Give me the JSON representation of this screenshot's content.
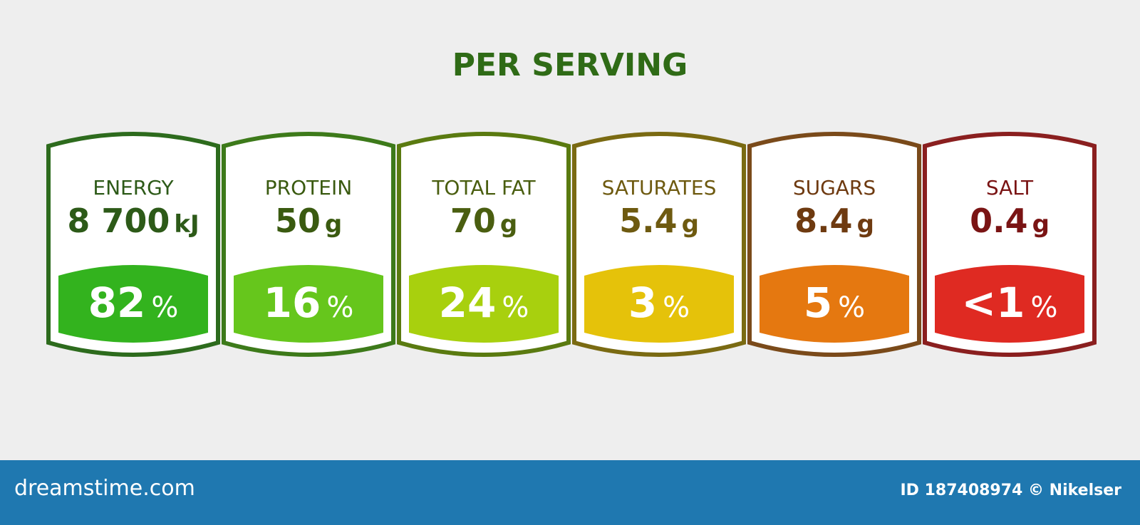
{
  "title": "PER SERVING",
  "cards": [
    {
      "label": "ENERGY",
      "value": "8 700",
      "unit": "kJ",
      "percent": "82",
      "pct_sign": "%",
      "border_color": "#2d6b1d",
      "fill_color": "#33b31e",
      "text_color": "#2d5a18"
    },
    {
      "label": "PROTEIN",
      "value": "50",
      "unit": "g",
      "percent": "16",
      "pct_sign": "%",
      "border_color": "#3d7a1a",
      "fill_color": "#66c61c",
      "text_color": "#3a5a10"
    },
    {
      "label": "TOTAL FAT",
      "value": "70",
      "unit": "g",
      "percent": "24",
      "pct_sign": "%",
      "border_color": "#5a7a10",
      "fill_color": "#a8d00e",
      "text_color": "#4a5e10"
    },
    {
      "label": "SATURATES",
      "value": "5.4",
      "unit": "g",
      "percent": "3",
      "pct_sign": "%",
      "border_color": "#7a6a12",
      "fill_color": "#e5c20a",
      "text_color": "#6e5a10"
    },
    {
      "label": "SUGARS",
      "value": "8.4",
      "unit": "g",
      "percent": "5",
      "pct_sign": "%",
      "border_color": "#7a4a1a",
      "fill_color": "#e57810",
      "text_color": "#6e3a10"
    },
    {
      "label": "SALT",
      "value": "0.4",
      "unit": "g",
      "percent": "<1",
      "pct_sign": "%",
      "border_color": "#8a1f1f",
      "fill_color": "#df2a22",
      "text_color": "#7a1414"
    }
  ],
  "footer": {
    "brand": "dreamstime.com",
    "credit": "ID 187408974 © Nikelser"
  }
}
